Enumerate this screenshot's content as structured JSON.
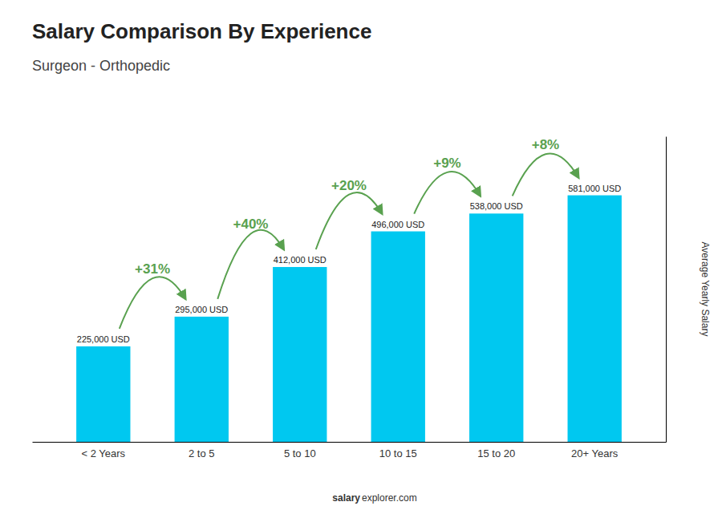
{
  "chart_data": {
    "type": "bar",
    "title": "Salary Comparison By Experience",
    "subtitle": "Surgeon - Orthopedic",
    "categories": [
      "< 2 Years",
      "2 to 5",
      "5 to 10",
      "10 to 15",
      "15 to 20",
      "20+ Years"
    ],
    "values": [
      225000,
      295000,
      412000,
      496000,
      538000,
      581000
    ],
    "value_labels": [
      "225,000 USD",
      "295,000 USD",
      "412,000 USD",
      "496,000 USD",
      "538,000 USD",
      "581,000 USD"
    ],
    "data_labels": true,
    "annotations": [
      "+31%",
      "+40%",
      "+20%",
      "+9%",
      "+8%"
    ],
    "ylabel": "Average Yearly Salary",
    "footer": [
      "salary",
      "explorer.com"
    ],
    "color": "#00C8F0",
    "ylim": [
      0,
      720000
    ],
    "tick_labels": "x",
    "grid": false
  }
}
